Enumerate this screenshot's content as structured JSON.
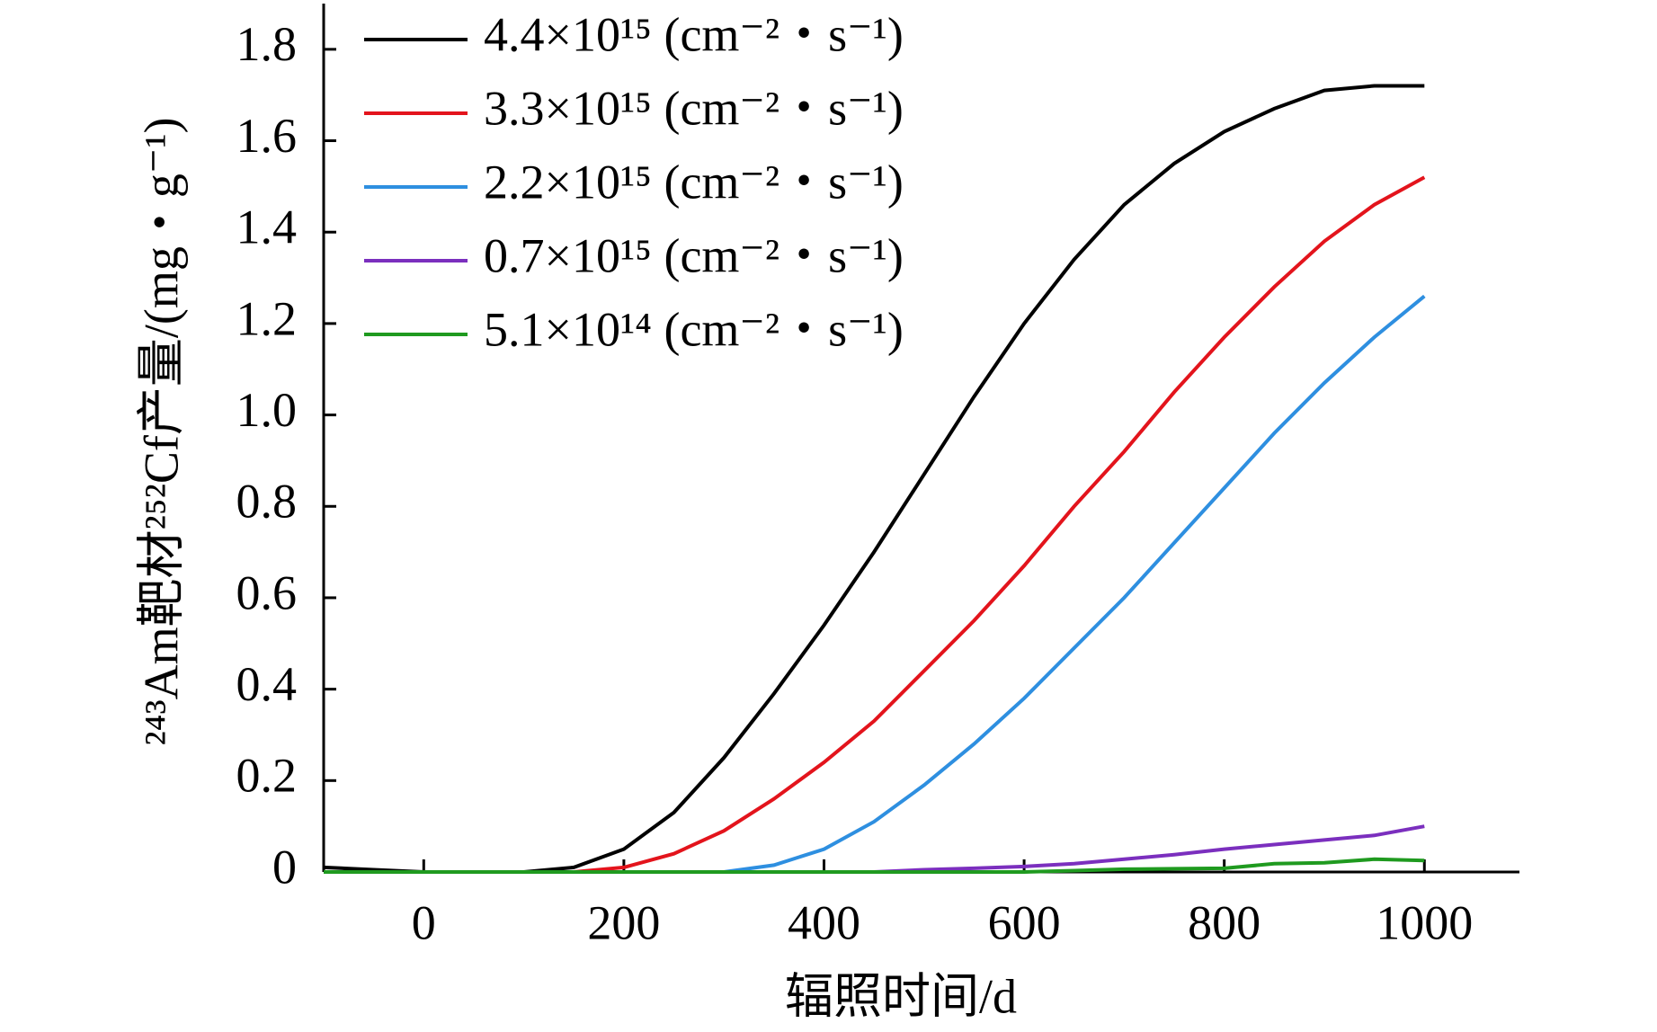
{
  "chart_data": {
    "type": "line",
    "xlabel": "辐照时间/d",
    "ylabel": "²⁴³Am靶材²⁵²Cf产量/(mg・g⁻¹)",
    "x": [
      -100,
      -50,
      0,
      50,
      100,
      150,
      200,
      250,
      300,
      350,
      400,
      450,
      500,
      550,
      600,
      650,
      700,
      750,
      800,
      850,
      900,
      950,
      1000
    ],
    "series": [
      {
        "name": "4.4×10¹⁵ (cm⁻²・s⁻¹)",
        "color": "#000000",
        "values": [
          0.01,
          0.005,
          0,
          0,
          0,
          0.01,
          0.05,
          0.13,
          0.25,
          0.39,
          0.54,
          0.7,
          0.87,
          1.04,
          1.2,
          1.34,
          1.46,
          1.55,
          1.62,
          1.67,
          1.71,
          1.72,
          1.72
        ]
      },
      {
        "name": "3.3×10¹⁵ (cm⁻²・s⁻¹)",
        "color": "#e3141c",
        "values": [
          0,
          0,
          0,
          0,
          0,
          0,
          0.01,
          0.04,
          0.09,
          0.16,
          0.24,
          0.33,
          0.44,
          0.55,
          0.67,
          0.8,
          0.92,
          1.05,
          1.17,
          1.28,
          1.38,
          1.46,
          1.52
        ]
      },
      {
        "name": "2.2×10¹⁵ (cm⁻²・s⁻¹)",
        "color": "#2e8fe0",
        "values": [
          0,
          0,
          0,
          0,
          0,
          0,
          0,
          0,
          0,
          0.015,
          0.05,
          0.11,
          0.19,
          0.28,
          0.38,
          0.49,
          0.6,
          0.72,
          0.84,
          0.96,
          1.07,
          1.17,
          1.26
        ]
      },
      {
        "name": "0.7×10¹⁵ (cm⁻²・s⁻¹)",
        "color": "#7b2fbe",
        "values": [
          0,
          0,
          0,
          0,
          0,
          0,
          0,
          0,
          0,
          0,
          0,
          0,
          0.005,
          0.008,
          0.012,
          0.018,
          0.028,
          0.038,
          0.05,
          0.06,
          0.07,
          0.08,
          0.1
        ]
      },
      {
        "name": "5.1×10¹⁴ (cm⁻²・s⁻¹)",
        "color": "#1f9a1f",
        "values": [
          0,
          0,
          0,
          0,
          0,
          0,
          0,
          0,
          0,
          0,
          0,
          0,
          0,
          0,
          0,
          0.003,
          0.006,
          0.007,
          0.008,
          0.018,
          0.02,
          0.028,
          0.025
        ]
      }
    ],
    "xlim": [
      -100,
      1095
    ],
    "ylim": [
      0,
      1.9
    ],
    "xticks": [
      0,
      200,
      400,
      600,
      800,
      1000
    ],
    "yticks": [
      0,
      0.2,
      0.4,
      0.6,
      0.8,
      {
        "value": 1,
        "label": "1.0"
      },
      1.2,
      1.4,
      1.6,
      1.8
    ],
    "legend": "upper-left",
    "grid": false
  }
}
